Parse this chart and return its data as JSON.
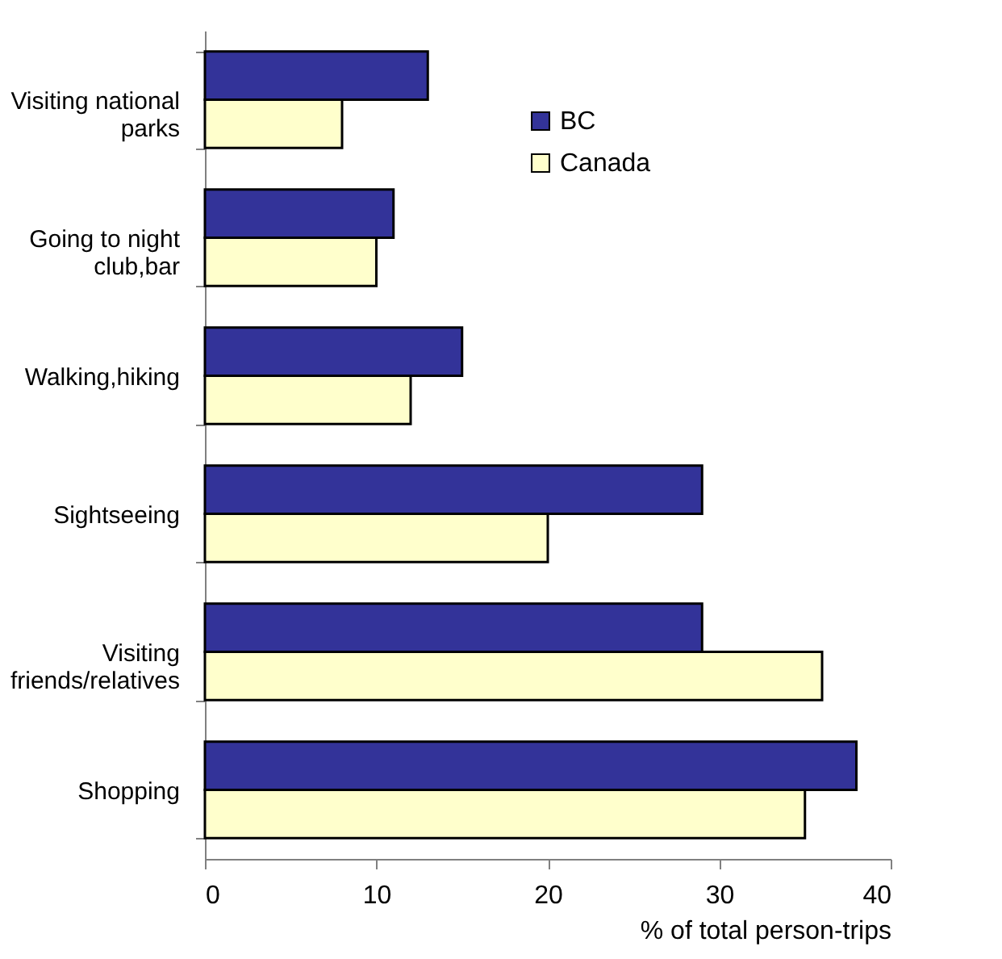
{
  "chart_data": {
    "type": "bar",
    "orientation": "horizontal",
    "xlabel": "% of total person-trips",
    "categories": [
      "Visiting national parks",
      "Going to night club,bar",
      "Walking,hiking",
      "Sightseeing",
      "Visiting friends/relatives",
      "Shopping"
    ],
    "series": [
      {
        "name": "BC",
        "color": "#333399",
        "values": [
          13,
          11,
          15,
          29,
          29,
          38
        ]
      },
      {
        "name": "Canada",
        "color": "#ffffcc",
        "values": [
          8,
          10,
          12,
          20,
          36,
          35
        ]
      }
    ],
    "xlim": [
      0,
      40
    ],
    "xticks": [
      0,
      10,
      20,
      30,
      40
    ],
    "grid": false,
    "legend": "top right"
  }
}
